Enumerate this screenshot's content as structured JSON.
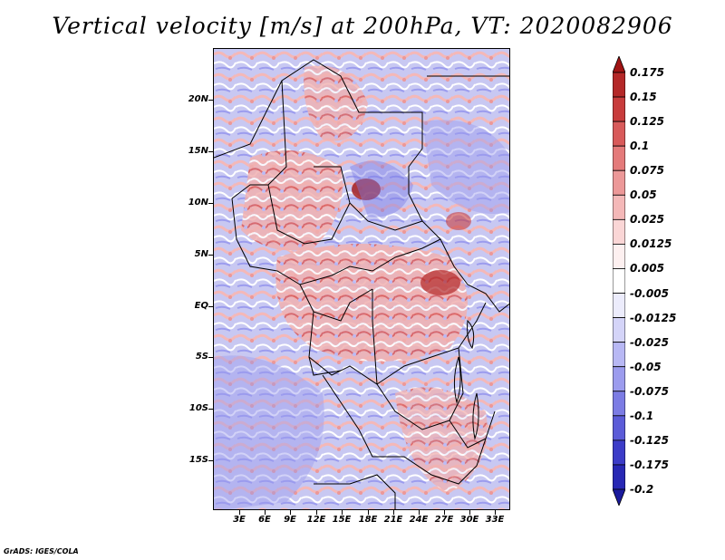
{
  "title": "Vertical velocity [m/s] at 200hPa, VT: 2020082906",
  "credit": "GrADS: IGES/COLA",
  "lat_labels": [
    "20N",
    "15N",
    "10N",
    "5N",
    "EQ",
    "5S",
    "10S",
    "15S"
  ],
  "lon_labels": [
    "3E",
    "6E",
    "9E",
    "12E",
    "15E",
    "18E",
    "21E",
    "24E",
    "27E",
    "30E",
    "33E"
  ],
  "colorbar": {
    "levels": [
      "0.175",
      "0.15",
      "0.125",
      "0.1",
      "0.075",
      "0.05",
      "0.025",
      "0.0125",
      "0.005",
      "-0.005",
      "-0.0125",
      "-0.025",
      "-0.05",
      "-0.075",
      "-0.1",
      "-0.125",
      "-0.175",
      "-0.2"
    ],
    "colors": [
      "#a01414",
      "#b42828",
      "#c83c3c",
      "#d85a5a",
      "#e47a7a",
      "#ec9898",
      "#f4b8b8",
      "#fad6d6",
      "#fdf0f0",
      "#ffffff",
      "#ececfc",
      "#d4d4f8",
      "#b8b8f4",
      "#9c9cee",
      "#7c7ce4",
      "#5c5cd8",
      "#3c3cc8",
      "#2828b4",
      "#1a1a9c"
    ]
  }
}
